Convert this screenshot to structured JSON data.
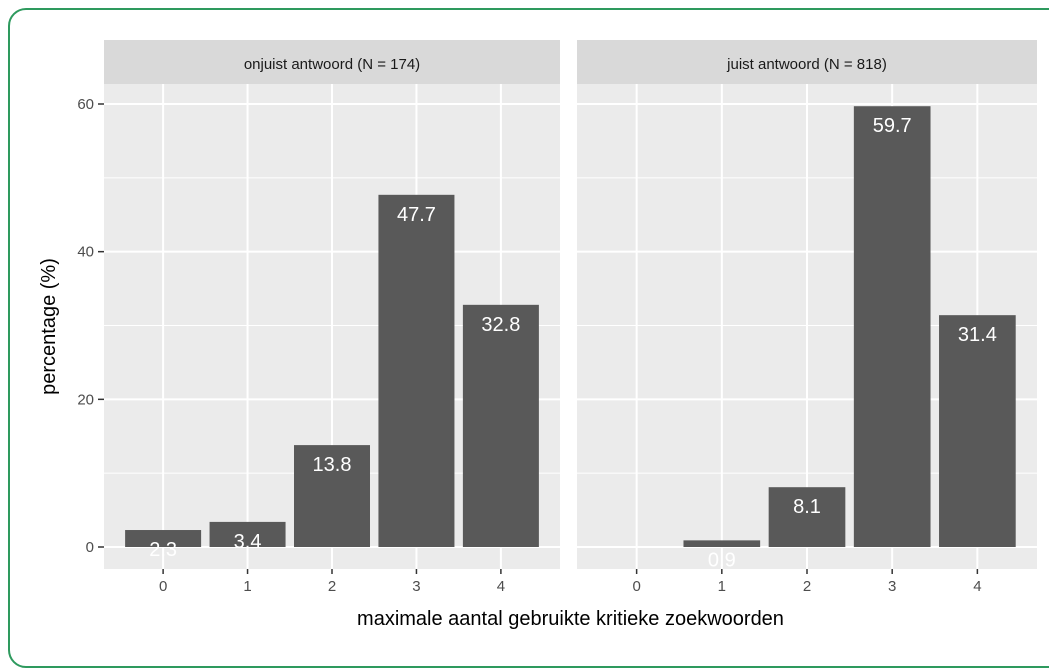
{
  "chart_data": {
    "type": "bar",
    "xlabel": "maximale aantal gebruikte kritieke zoekwoorden",
    "ylabel": "percentage (%)",
    "ylim": [
      0,
      63
    ],
    "yticks": [
      0,
      20,
      40,
      60
    ],
    "categories": [
      "0",
      "1",
      "2",
      "3",
      "4"
    ],
    "grid": true,
    "colors": {
      "bar": "#595959",
      "panel": "#ebebeb",
      "strip": "#d9d9d9",
      "grid": "#ffffff",
      "frame": "#2e9a5e"
    },
    "panels": [
      {
        "strip": "onjuist antwoord (N = 174)",
        "values": [
          2.3,
          3.4,
          13.8,
          47.7,
          32.8
        ],
        "labels": [
          "2.3",
          "3.4",
          "13.8",
          "47.7",
          "32.8"
        ]
      },
      {
        "strip": "juist antwoord (N = 818)",
        "values": [
          0,
          0.9,
          8.1,
          59.7,
          31.4
        ],
        "labels": [
          "",
          "0.9",
          "8.1",
          "59.7",
          "31.4"
        ]
      }
    ]
  }
}
